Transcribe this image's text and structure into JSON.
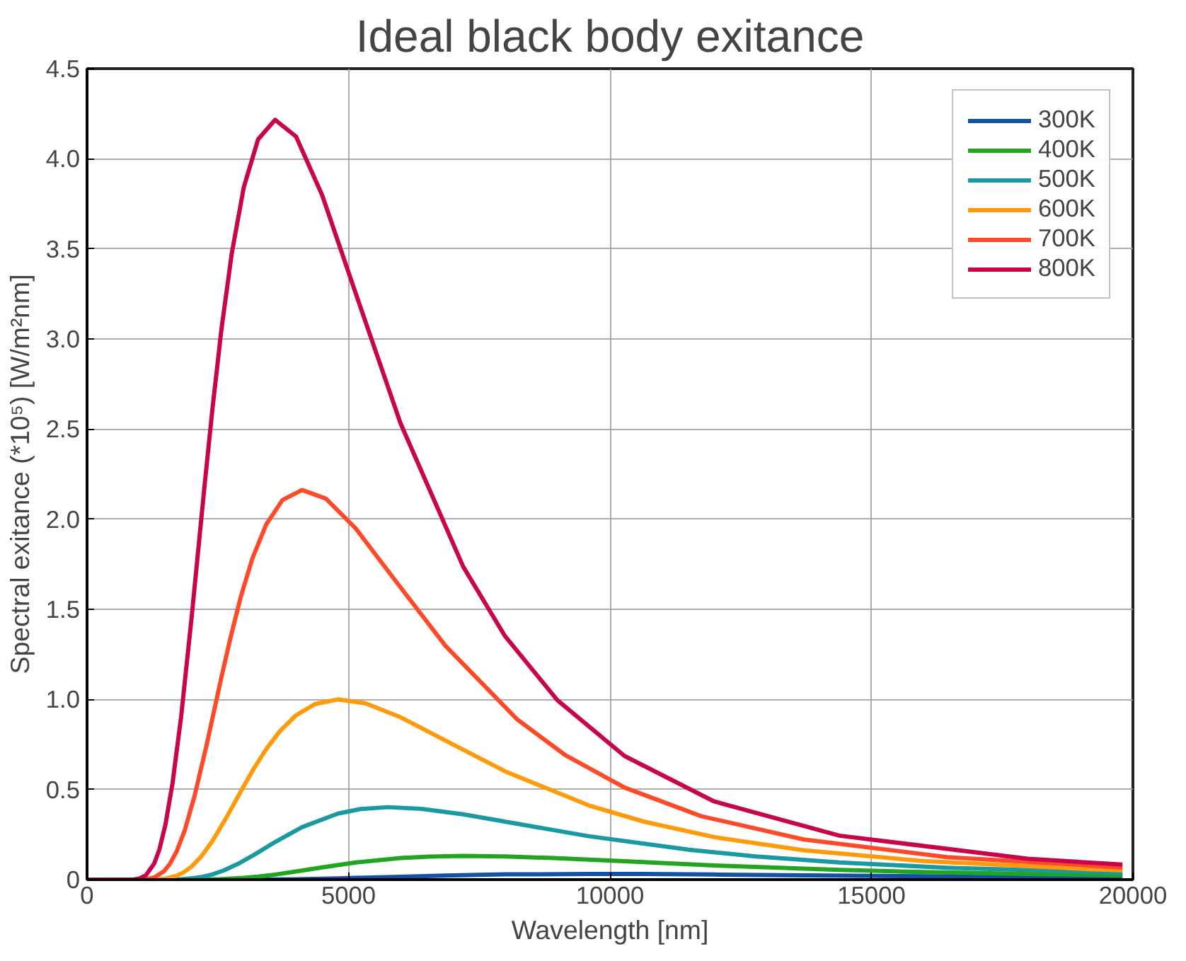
{
  "chart_data": {
    "type": "line",
    "title": "Ideal black body exitance",
    "xlabel": "Wavelength [nm]",
    "ylabel": "Spectral exitance (*10⁵) [W/m²nm]",
    "xlim": [
      0,
      20000
    ],
    "ylim": [
      0,
      4.5
    ],
    "xticks": [
      0,
      5000,
      10000,
      15000,
      20000
    ],
    "yticks": [
      0,
      0.5,
      {
        "value": 1,
        "label": "1.0"
      },
      1.5,
      {
        "value": 2,
        "label": "2.0"
      },
      2.5,
      {
        "value": 3,
        "label": "3.0"
      },
      3.5,
      {
        "value": 4,
        "label": "4.0"
      },
      4.5
    ],
    "grid": true,
    "legend": "top right",
    "line_style": "solid",
    "series": [
      {
        "name": "300K",
        "color": "#1450a8",
        "x": [
          0,
          2998,
          3997,
          4796,
          5995,
          6851,
          7993,
          9592,
          10658,
          11990,
          13703,
          15987,
          19800
        ],
        "values": [
          0,
          0.0,
          0.002,
          0.007,
          0.016,
          0.023,
          0.029,
          0.031,
          0.031,
          0.028,
          0.024,
          0.019,
          0.012
        ]
      },
      {
        "name": "400K",
        "color": "#20a520",
        "x": [
          0,
          2248,
          2569,
          2998,
          3270,
          3597,
          3997,
          4496,
          5139,
          5995,
          6540,
          7194,
          7993,
          8993,
          10277,
          11990,
          14388,
          15987,
          17985,
          19800
        ],
        "values": [
          0,
          0.001,
          0.003,
          0.01,
          0.017,
          0.028,
          0.045,
          0.068,
          0.095,
          0.12,
          0.128,
          0.132,
          0.129,
          0.119,
          0.102,
          0.079,
          0.054,
          0.042,
          0.031,
          0.024
        ]
      },
      {
        "name": "500K",
        "color": "#1a9aa0",
        "x": [
          0,
          1439,
          1599,
          1799,
          2055,
          2213,
          2398,
          2616,
          2878,
          3197,
          3597,
          4111,
          4796,
          5232,
          5755,
          6395,
          7194,
          8222,
          9592,
          11510,
          12789,
          14388,
          16443,
          19800
        ],
        "values": [
          0,
          0.0,
          0.001,
          0.002,
          0.009,
          0.016,
          0.029,
          0.051,
          0.086,
          0.138,
          0.209,
          0.291,
          0.366,
          0.392,
          0.402,
          0.393,
          0.362,
          0.31,
          0.241,
          0.166,
          0.129,
          0.095,
          0.066,
          0.038
        ]
      },
      {
        "name": "600K",
        "color": "#ff9a0a",
        "x": [
          0,
          1199,
          1332,
          1499,
          1713,
          1845,
          1998,
          2180,
          2398,
          2664,
          2998,
          3197,
          3426,
          3689,
          3997,
          4360,
          4796,
          5329,
          5995,
          6851,
          7993,
          9592,
          10658,
          11990,
          13703,
          15987,
          19184,
          19800
        ],
        "values": [
          0,
          0.0,
          0.001,
          0.006,
          0.021,
          0.04,
          0.072,
          0.127,
          0.214,
          0.344,
          0.519,
          0.62,
          0.724,
          0.824,
          0.912,
          0.974,
          1.0,
          0.978,
          0.901,
          0.772,
          0.601,
          0.412,
          0.321,
          0.236,
          0.163,
          0.103,
          0.058,
          0.052
        ]
      },
      {
        "name": "700K",
        "color": "#ff4a2a",
        "x": [
          0,
          1028,
          1142,
          1285,
          1468,
          1581,
          1713,
          1869,
          2055,
          2284,
          2569,
          2741,
          2936,
          3162,
          3426,
          3737,
          4111,
          4568,
          5139,
          5873,
          6851,
          8222,
          9135,
          10277,
          11745,
          13703,
          16443,
          19800
        ],
        "values": [
          0,
          0.001,
          0.003,
          0.012,
          0.046,
          0.086,
          0.156,
          0.274,
          0.463,
          0.744,
          1.122,
          1.339,
          1.565,
          1.782,
          1.971,
          2.106,
          2.162,
          2.114,
          1.948,
          1.668,
          1.298,
          0.89,
          0.693,
          0.511,
          0.352,
          0.223,
          0.125,
          0.067
        ]
      },
      {
        "name": "800K",
        "color": "#c8054c",
        "x": [
          0,
          899,
          999,
          1124,
          1285,
          1383,
          1499,
          1635,
          1799,
          1998,
          2248,
          2398,
          2569,
          2767,
          2998,
          3270,
          3597,
          3997,
          4496,
          5139,
          5995,
          7194,
          7993,
          8993,
          10277,
          11990,
          14388,
          17985,
          19800
        ],
        "values": [
          0,
          0.001,
          0.006,
          0.024,
          0.089,
          0.167,
          0.304,
          0.535,
          0.903,
          1.45,
          2.188,
          2.611,
          3.051,
          3.474,
          3.842,
          4.107,
          4.216,
          4.123,
          3.798,
          3.252,
          2.532,
          1.736,
          1.351,
          0.996,
          0.686,
          0.434,
          0.244,
          0.116,
          0.083
        ]
      }
    ]
  }
}
